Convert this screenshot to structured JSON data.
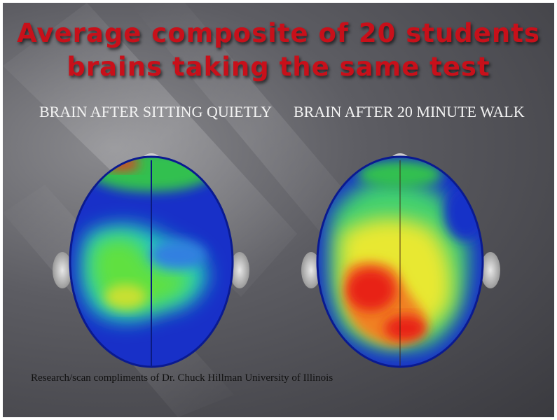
{
  "slide": {
    "title": [
      "Average composite of 20 students",
      "brains taking the same test"
    ],
    "captions": [
      "BRAIN AFTER SITTING QUIETLY",
      "BRAIN AFTER 20 MINUTE WALK"
    ],
    "credit": "Research/scan compliments of Dr. Chuck Hillman University of Illinois"
  }
}
